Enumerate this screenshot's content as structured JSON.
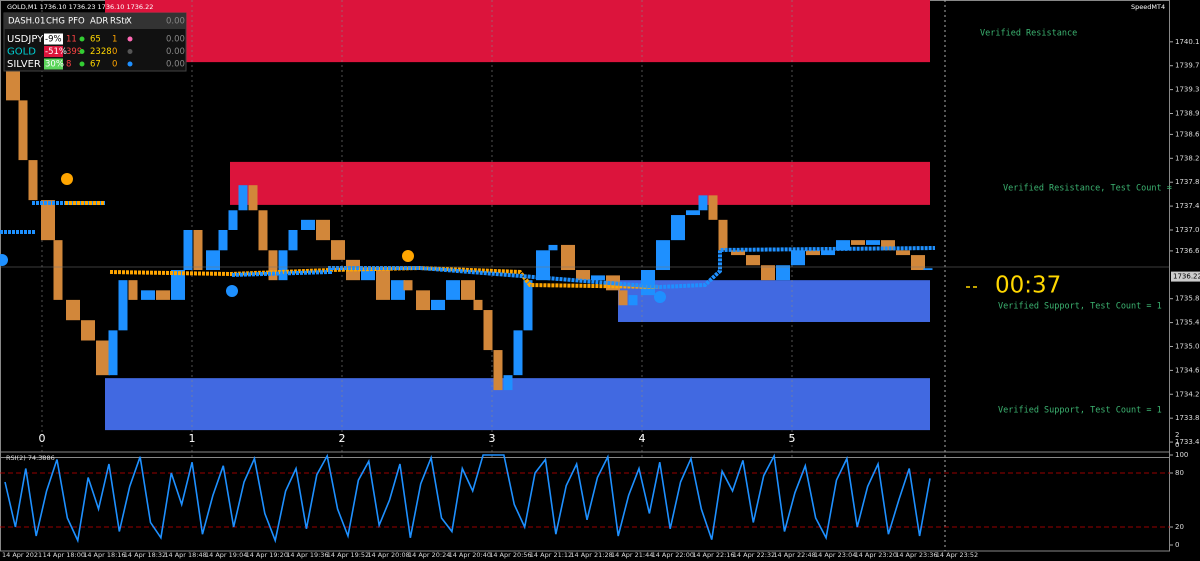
{
  "header": {
    "symbol_info": "GOLD,M1  1736.10 1736.23 1736.10 1736.22",
    "brand": "SpeedMT4"
  },
  "dashboard": {
    "columns": [
      "DASH.01",
      "CHG",
      "PFO",
      "ADR",
      "RStr",
      "X",
      "0.00"
    ],
    "rows": [
      [
        "USDJPY",
        "-9%",
        "11",
        "65",
        "1",
        "0.00"
      ],
      [
        "GOLD",
        "-51%",
        "399",
        "2328",
        "0",
        "0.00"
      ],
      [
        "SILVER",
        "30%",
        "8",
        "67",
        "0",
        "0.00"
      ]
    ]
  },
  "price_axis": {
    "ylim": [
      1733.2,
      1740.85
    ],
    "ticks": [
      1740.15,
      1739.75,
      1739.35,
      1738.95,
      {
        "value": 1738.6,
        "label": "1738.60"
      },
      {
        "value": 1738.2,
        "label": "1738.20"
      },
      {
        "value": 1737.8,
        "label": "1737.80"
      },
      {
        "value": 1737.4,
        "label": "1737.40"
      },
      {
        "value": 1737,
        "label": "1737.00"
      },
      1736.65,
      1735.85,
      1735.45,
      1735.05,
      1734.65,
      1734.25,
      1733.85,
      1733.45
    ],
    "current": 1736.22,
    "sub_ticks": [
      2,
      0
    ]
  },
  "sessions": [
    0,
    1,
    2,
    3,
    4,
    5
  ],
  "time_axis": [
    "14 Apr 2021",
    "14 Apr 18:00",
    "14 Apr 18:16",
    "14 Apr 18:32",
    "14 Apr 18:48",
    "14 Apr 19:04",
    "14 Apr 19:20",
    "14 Apr 19:36",
    "14 Apr 19:52",
    "14 Apr 20:08",
    "14 Apr 20:24",
    "14 Apr 20:40",
    "14 Apr 20:56",
    "14 Apr 21:12",
    "14 Apr 21:28",
    "14 Apr 21:44",
    "14 Apr 22:00",
    "14 Apr 22:16",
    "14 Apr 22:32",
    "14 Apr 22:48",
    "14 Apr 23:04",
    "14 Apr 23:20",
    "14 Apr 23:36",
    "14 Apr 23:52"
  ],
  "zones": [
    {
      "label": "Verified Resistance",
      "top": 1740.85,
      "bottom": 1739.81,
      "start": 21,
      "end": 186,
      "color": "#dc143c"
    },
    {
      "label": "Verified Resistance, Test Count =",
      "top": 1738.14,
      "bottom": 1737.42,
      "start": 46,
      "end": 186,
      "color": "#dc143c"
    },
    {
      "label": "Verified Support, Test Count = 1",
      "top": 1736.16,
      "bottom": 1735.46,
      "start": 123.6,
      "end": 186,
      "color": "#4169e1"
    },
    {
      "label": "Verified Support, Test Count = 1",
      "top": 1734.52,
      "bottom": 1733.65,
      "start": 21,
      "end": 186,
      "color": "#4169e1"
    }
  ],
  "countdown": "00:37",
  "price": {
    "bar": [
      0,
      3,
      5,
      7,
      10,
      12,
      15,
      18,
      21,
      23,
      25,
      27,
      30,
      33,
      36,
      38,
      40,
      43,
      45,
      47,
      49,
      51,
      53,
      55,
      57,
      59,
      62,
      65,
      68,
      71,
      74,
      77,
      80,
      82,
      85,
      88,
      91,
      94,
      96,
      98,
      100,
      102,
      104,
      106,
      109,
      111,
      114,
      117,
      120,
      123,
      125,
      127,
      130,
      133,
      136,
      139,
      141,
      143,
      145,
      148,
      151,
      154,
      157,
      160,
      163,
      166,
      169,
      172,
      175,
      178,
      181,
      184,
      186
    ],
    "close": [
      1739.85,
      1739.17,
      1738.17,
      1737.5,
      1736.83,
      1735.83,
      1735.49,
      1735.15,
      1734.57,
      1735.32,
      1736.16,
      1735.83,
      1735.99,
      1735.83,
      1736.33,
      1737,
      1736.33,
      1736.66,
      1737,
      1737.33,
      1737.75,
      1737.33,
      1736.66,
      1736.16,
      1736.66,
      1737,
      1737.17,
      1736.83,
      1736.5,
      1736.16,
      1736.33,
      1735.83,
      1736.16,
      1735.99,
      1735.66,
      1735.83,
      1736.16,
      1735.83,
      1735.66,
      1734.99,
      1734.32,
      1734.57,
      1735.32,
      1736.16,
      1736.66,
      1736.75,
      1736.33,
      1736.16,
      1736.24,
      1735.99,
      1735.74,
      1735.91,
      1736.33,
      1736.83,
      1737.25,
      1737.33,
      1737.58,
      1737.17,
      1736.66,
      1736.58,
      1736.41,
      1736.16,
      1736.41,
      1736.66,
      1736.58,
      1736.66,
      1736.83,
      1736.75,
      1736.83,
      1736.66,
      1736.58,
      1736.33,
      1736.36
    ]
  },
  "rsi": {
    "label": "RSI(2) 74.3886",
    "ylim": [
      0,
      100
    ],
    "ticks": [
      0,
      20,
      80,
      100
    ],
    "levels": [
      20,
      80
    ],
    "values": [
      70,
      20,
      85,
      10,
      60,
      95,
      30,
      5,
      75,
      40,
      90,
      15,
      65,
      98,
      25,
      8,
      80,
      45,
      92,
      12,
      55,
      88,
      20,
      70,
      96,
      35,
      5,
      60,
      85,
      18,
      78,
      99,
      40,
      10,
      72,
      93,
      22,
      50,
      90,
      8,
      68,
      97,
      30,
      15,
      85,
      60,
      100,
      100,
      100,
      45,
      20,
      80,
      95,
      12,
      66,
      90,
      28,
      75,
      98,
      10,
      55,
      85,
      35,
      92,
      18,
      70,
      96,
      40,
      6,
      82,
      60,
      94,
      25,
      77,
      99,
      15,
      58,
      88,
      30,
      8,
      72,
      96,
      20,
      65,
      90,
      12,
      50,
      85,
      10,
      74
    ]
  }
}
